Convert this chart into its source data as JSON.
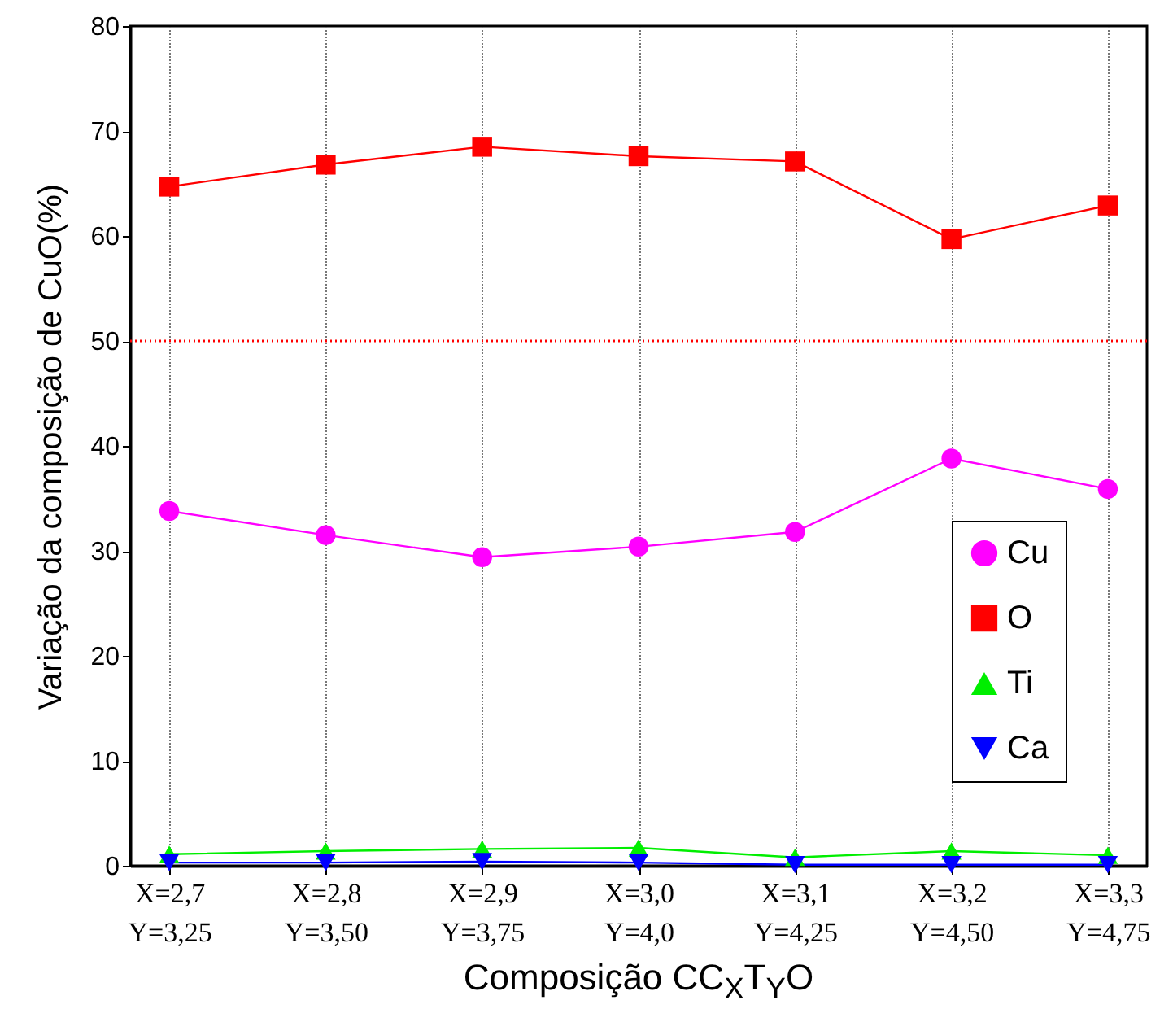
{
  "chart_data": {
    "type": "line",
    "xlabel": "Composição CC$_{X}$T$_{Y}$O",
    "ylabel": "Variação da composição de CuO(%)",
    "categories": [
      "X=2,7\nY=3,25",
      "X=2,8\nY=3,50",
      "X=2,9\nY=3,75",
      "X=3,0\nY=4,0",
      "X=3,1\nY=4,25",
      "X=3,2\nY=4,50",
      "X=3,3\nY=4,75"
    ],
    "series": [
      {
        "name": "Cu",
        "color": "#ff00ff",
        "marker": "circle",
        "values": [
          33.8,
          31.5,
          29.4,
          30.4,
          31.8,
          38.8,
          35.9
        ]
      },
      {
        "name": "O",
        "color": "#ff0000",
        "marker": "square",
        "values": [
          64.7,
          66.8,
          68.5,
          67.6,
          67.1,
          59.7,
          62.9
        ]
      },
      {
        "name": "Ti",
        "color": "#00ee00",
        "marker": "triangle",
        "values": [
          1.1,
          1.4,
          1.6,
          1.7,
          0.8,
          1.4,
          1.0
        ]
      },
      {
        "name": "Ca",
        "color": "#0000ff",
        "marker": "triangle-down",
        "values": [
          0.3,
          0.3,
          0.4,
          0.3,
          0.1,
          0.1,
          0.1
        ]
      }
    ],
    "ylim": [
      0,
      80
    ],
    "yticks": [
      0,
      10,
      20,
      30,
      40,
      50,
      60,
      70,
      80
    ],
    "ref_lines": [
      {
        "axis": "y",
        "value": 50,
        "color": "#ff0000",
        "line_style": "dotted"
      }
    ],
    "grid": "x",
    "legend": "right",
    "line_style": "solid"
  }
}
